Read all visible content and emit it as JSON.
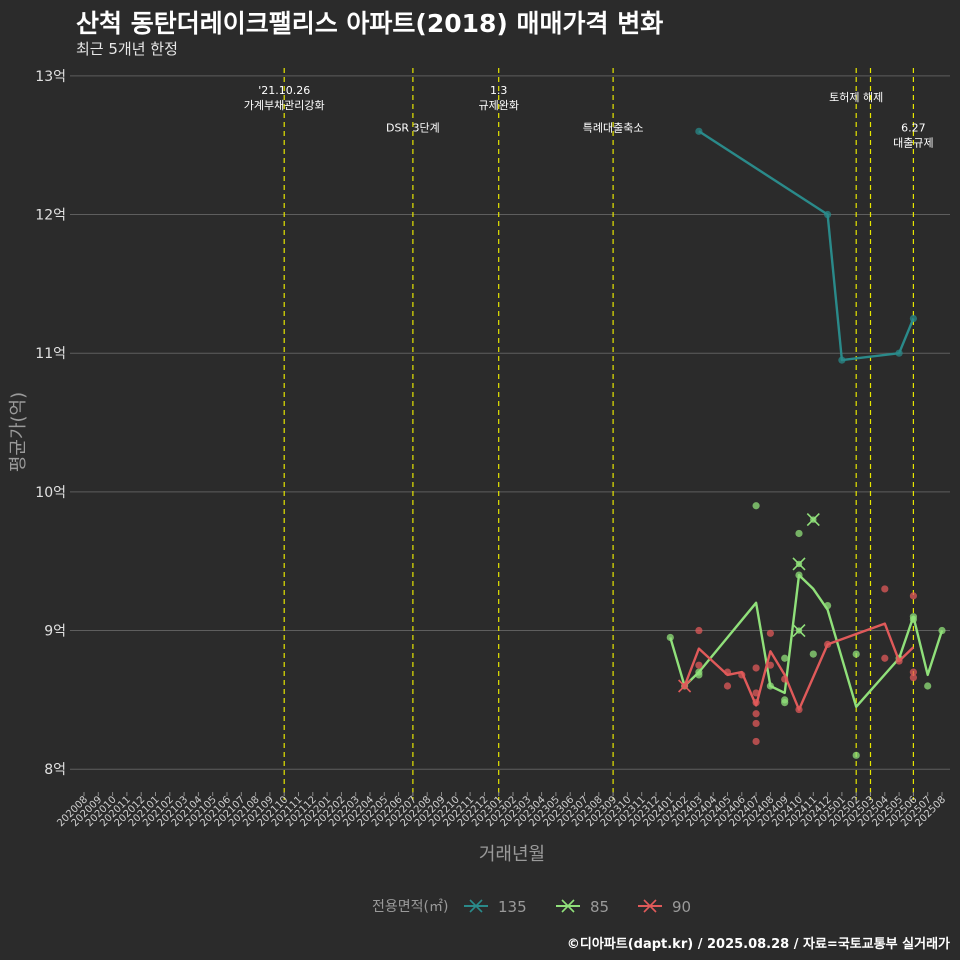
{
  "header": {
    "title": "산척 동탄더레이크팰리스 아파트(2018) 매매가격 변화",
    "subtitle": "최근 5개년 한정"
  },
  "footer": {
    "caption": "©디아파트(dapt.kr) / 2025.08.28 / 자료=국토교통부 실거래가"
  },
  "chart_data": {
    "type": "line",
    "xlabel": "거래년월",
    "ylabel": "평균가(억)",
    "ylim": [
      7.85,
      13.1
    ],
    "y_ticks": [
      8,
      9,
      10,
      11,
      12,
      13
    ],
    "y_tick_labels": [
      "8억",
      "9억",
      "10억",
      "11억",
      "12억",
      "13억"
    ],
    "categories": [
      "202008",
      "202009",
      "202010",
      "202011",
      "202012",
      "202101",
      "202102",
      "202103",
      "202104",
      "202105",
      "202106",
      "202107",
      "202108",
      "202109",
      "202110",
      "202111",
      "202112",
      "202201",
      "202202",
      "202203",
      "202204",
      "202205",
      "202206",
      "202207",
      "202208",
      "202209",
      "202210",
      "202211",
      "202212",
      "202301",
      "202302",
      "202303",
      "202304",
      "202305",
      "202306",
      "202307",
      "202308",
      "202309",
      "202310",
      "202311",
      "202312",
      "202401",
      "202402",
      "202403",
      "202404",
      "202405",
      "202406",
      "202407",
      "202408",
      "202409",
      "202410",
      "202411",
      "202412",
      "202501",
      "202502",
      "202503",
      "202504",
      "202505",
      "202506",
      "202507",
      "202508"
    ],
    "legend": {
      "title": "전용면적(㎡)",
      "position": "bottom"
    },
    "colors": {
      "135": "#2a8a8a",
      "85": "#90e07a",
      "90": "#e05a5a",
      "event_line": "#e6e600",
      "grid": "#5e5e5e",
      "background": "#2b2b2b"
    },
    "events": [
      {
        "x": "202110",
        "label_lines": [
          "'21.10.26",
          "가계부채관리강화"
        ],
        "label_y": 12.87
      },
      {
        "x": "202207",
        "label_lines": [
          "DSR 3단계"
        ],
        "label_y": 12.6
      },
      {
        "x": "202301",
        "label_lines": [
          "1.3",
          "규제완화"
        ],
        "label_y": 12.87
      },
      {
        "x": "202309",
        "label_lines": [
          "특례대출축소"
        ],
        "label_y": 12.6
      },
      {
        "x": "202502",
        "label_lines": [
          "토허제 해제"
        ],
        "label_y": 12.82
      },
      {
        "x": "202503",
        "label_lines": [],
        "label_y": 12.6
      },
      {
        "x": "202506",
        "label_lines": [
          "6.27",
          "대출규제"
        ],
        "label_y": 12.6
      }
    ],
    "series": [
      {
        "name": "135",
        "line": [
          [
            "202403",
            12.6
          ],
          [
            "202412",
            12.0
          ],
          [
            "202501",
            10.95
          ],
          [
            "202505",
            11.0
          ],
          [
            "202506",
            11.25
          ]
        ],
        "points": [
          [
            "202403",
            12.6
          ],
          [
            "202412",
            12.0
          ],
          [
            "202501",
            10.95
          ],
          [
            "202505",
            11.0
          ],
          [
            "202506",
            11.25
          ]
        ],
        "cancelled": []
      },
      {
        "name": "85",
        "line": [
          [
            "202401",
            8.95
          ],
          [
            "202402",
            8.6
          ],
          [
            "202403",
            8.7
          ],
          [
            "202407",
            9.2
          ],
          [
            "202408",
            8.6
          ],
          [
            "202409",
            8.55
          ],
          [
            "202410",
            9.4
          ],
          [
            "202411",
            9.3
          ],
          [
            "202412",
            9.15
          ],
          [
            "202502",
            8.45
          ],
          [
            "202505",
            8.8
          ],
          [
            "202506",
            9.1
          ],
          [
            "202507",
            8.68
          ],
          [
            "202508",
            9.0
          ]
        ],
        "points": [
          [
            "202401",
            8.95
          ],
          [
            "202402",
            8.6
          ],
          [
            "202403",
            8.7
          ],
          [
            "202403",
            8.68
          ],
          [
            "202407",
            9.9
          ],
          [
            "202408",
            8.6
          ],
          [
            "202409",
            8.8
          ],
          [
            "202409",
            8.5
          ],
          [
            "202409",
            8.48
          ],
          [
            "202410",
            9.7
          ],
          [
            "202410",
            9.4
          ],
          [
            "202411",
            8.83
          ],
          [
            "202412",
            9.18
          ],
          [
            "202502",
            8.83
          ],
          [
            "202502",
            8.1
          ],
          [
            "202505",
            8.8
          ],
          [
            "202506",
            9.1
          ],
          [
            "202506",
            9.08
          ],
          [
            "202507",
            8.6
          ],
          [
            "202508",
            9.0
          ]
        ],
        "cancelled": [
          [
            "202410",
            9.48
          ],
          [
            "202410",
            9.0
          ],
          [
            "202411",
            9.8
          ]
        ]
      },
      {
        "name": "90",
        "line": [
          [
            "202402",
            8.6
          ],
          [
            "202403",
            8.87
          ],
          [
            "202405",
            8.68
          ],
          [
            "202406",
            8.7
          ],
          [
            "202407",
            8.46
          ],
          [
            "202408",
            8.85
          ],
          [
            "202409",
            8.68
          ],
          [
            "202410",
            8.43
          ],
          [
            "202412",
            8.9
          ],
          [
            "202504",
            9.05
          ],
          [
            "202505",
            8.78
          ],
          [
            "202506",
            8.88
          ]
        ],
        "points": [
          [
            "202403",
            9.0
          ],
          [
            "202403",
            8.75
          ],
          [
            "202405",
            8.7
          ],
          [
            "202405",
            8.6
          ],
          [
            "202406",
            8.68
          ],
          [
            "202407",
            8.73
          ],
          [
            "202407",
            8.55
          ],
          [
            "202407",
            8.48
          ],
          [
            "202407",
            8.4
          ],
          [
            "202407",
            8.33
          ],
          [
            "202407",
            8.2
          ],
          [
            "202408",
            8.98
          ],
          [
            "202408",
            8.75
          ],
          [
            "202409",
            8.65
          ],
          [
            "202410",
            8.43
          ],
          [
            "202412",
            8.9
          ],
          [
            "202504",
            9.3
          ],
          [
            "202504",
            8.8
          ],
          [
            "202505",
            8.78
          ],
          [
            "202506",
            9.25
          ],
          [
            "202506",
            8.7
          ],
          [
            "202506",
            8.66
          ]
        ],
        "cancelled": [
          [
            "202402",
            8.6
          ]
        ]
      }
    ]
  }
}
